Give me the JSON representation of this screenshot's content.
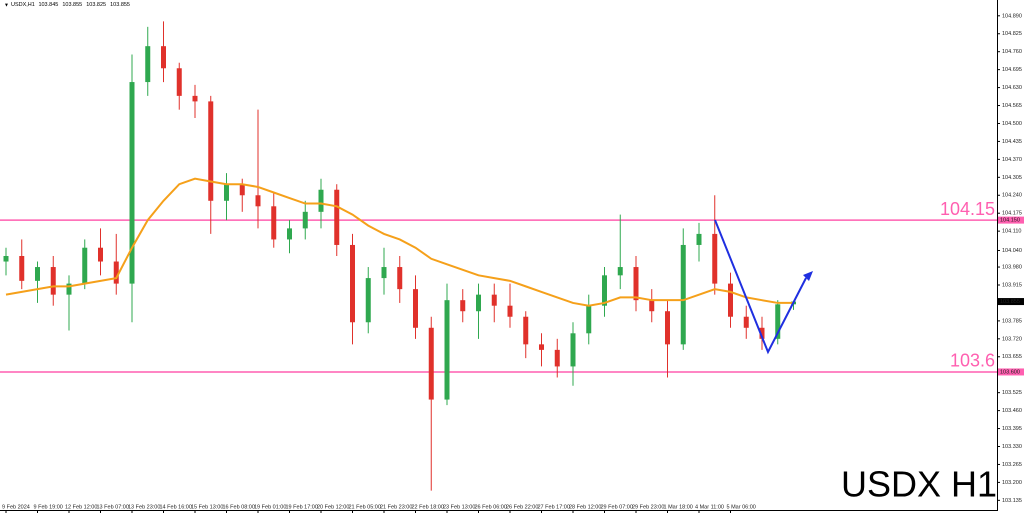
{
  "chart_data": {
    "type": "candlestick",
    "title": "USDX,H1",
    "watermark": "USDX H1",
    "up_color": "#2fa84f",
    "down_color": "#e0312b",
    "categories": [
      "9 Feb 2024",
      null,
      "9 Feb 19:00",
      null,
      "12 Feb 12:00",
      null,
      "13 Feb 07:00",
      null,
      "13 Feb 23:00",
      null,
      "14 Feb 16:00",
      null,
      "15 Feb 13:00",
      null,
      "16 Feb 08:00",
      null,
      "19 Feb 01:00",
      null,
      "19 Feb 17:00",
      null,
      "20 Feb 12:00",
      null,
      "21 Feb 05:00",
      null,
      "21 Feb 23:00",
      null,
      "22 Feb 18:00",
      null,
      "23 Feb 13:00",
      null,
      "26 Feb 06:00",
      null,
      "26 Feb 22:00",
      null,
      "27 Feb 17:00",
      null,
      "28 Feb 12:00",
      null,
      "29 Feb 07:00",
      null,
      "29 Feb 23:00",
      null,
      "1 Mar 18:00",
      null,
      "4 Mar 11:00",
      null,
      "5 Mar 06:00",
      null,
      null,
      null,
      null
    ],
    "open": [
      104.0,
      104.02,
      103.93,
      103.98,
      103.88,
      103.92,
      104.05,
      104.0,
      103.92,
      104.65,
      104.78,
      104.7,
      104.6,
      104.58,
      104.22,
      104.28,
      104.24,
      104.2,
      104.08,
      104.12,
      104.18,
      104.26,
      104.06,
      103.78,
      103.94,
      103.98,
      103.9,
      103.76,
      103.5,
      103.86,
      103.82,
      103.88,
      103.84,
      103.8,
      103.7,
      103.68,
      103.62,
      103.74,
      103.84,
      103.95,
      103.98,
      103.86,
      103.82,
      103.7,
      104.06,
      104.1,
      103.92,
      103.8,
      103.76,
      103.72,
      103.845
    ],
    "high": [
      104.05,
      104.08,
      104.0,
      104.02,
      103.95,
      104.08,
      104.12,
      104.1,
      104.75,
      104.85,
      104.87,
      104.72,
      104.64,
      104.6,
      104.32,
      104.3,
      104.55,
      104.25,
      104.15,
      104.22,
      104.3,
      104.28,
      104.1,
      103.98,
      104.05,
      104.02,
      103.95,
      103.8,
      103.92,
      103.9,
      103.92,
      103.92,
      103.92,
      103.82,
      103.74,
      103.72,
      103.78,
      103.88,
      103.98,
      104.17,
      104.02,
      103.9,
      103.86,
      104.12,
      104.14,
      104.24,
      103.96,
      103.84,
      103.8,
      103.86,
      103.855
    ],
    "low": [
      103.95,
      103.9,
      103.85,
      103.84,
      103.75,
      103.9,
      103.95,
      103.88,
      103.78,
      104.6,
      104.65,
      104.55,
      104.52,
      104.1,
      104.15,
      104.18,
      104.12,
      104.05,
      104.03,
      104.08,
      104.12,
      104.02,
      103.7,
      103.74,
      103.88,
      103.85,
      103.72,
      103.17,
      103.48,
      103.78,
      103.72,
      103.78,
      103.76,
      103.65,
      103.62,
      103.58,
      103.55,
      103.7,
      103.8,
      103.9,
      103.82,
      103.78,
      103.58,
      103.68,
      104.0,
      103.88,
      103.76,
      103.72,
      103.68,
      103.7,
      103.825
    ],
    "close": [
      104.02,
      103.93,
      103.98,
      103.88,
      103.92,
      104.05,
      104.0,
      103.92,
      104.65,
      104.78,
      104.7,
      104.6,
      104.58,
      104.22,
      104.28,
      104.24,
      104.2,
      104.08,
      104.12,
      104.18,
      104.26,
      104.06,
      103.78,
      103.94,
      103.98,
      103.9,
      103.76,
      103.5,
      103.86,
      103.82,
      103.88,
      103.84,
      103.8,
      103.7,
      103.68,
      103.62,
      103.74,
      103.84,
      103.95,
      103.98,
      103.86,
      103.82,
      103.7,
      104.06,
      104.1,
      103.92,
      103.8,
      103.76,
      103.72,
      103.845,
      103.855
    ],
    "overlays": [
      {
        "color": "#f5a01a",
        "values": [
          103.88,
          103.89,
          103.9,
          103.91,
          103.91,
          103.92,
          103.93,
          103.94,
          104.05,
          104.15,
          104.22,
          104.28,
          104.3,
          104.29,
          104.28,
          104.28,
          104.27,
          104.25,
          104.23,
          104.21,
          104.21,
          104.2,
          104.17,
          104.13,
          104.1,
          104.08,
          104.05,
          104.01,
          103.99,
          103.97,
          103.95,
          103.94,
          103.93,
          103.91,
          103.89,
          103.87,
          103.85,
          103.84,
          103.85,
          103.87,
          103.87,
          103.86,
          103.86,
          103.86,
          103.88,
          103.9,
          103.89,
          103.87,
          103.86,
          103.85,
          103.85
        ]
      }
    ],
    "levels": [
      {
        "value": 104.15,
        "label": "104.150"
      },
      {
        "value": 103.6,
        "label": "103.600"
      }
    ],
    "level_color": "#ff5fb0",
    "ylim": [
      103.1,
      104.94
    ],
    "yticks": [
      {
        "value": 104.89,
        "label": "104.890"
      },
      104.825,
      {
        "value": 104.76,
        "label": "104.760"
      },
      104.695,
      {
        "value": 104.63,
        "label": "104.630"
      },
      104.565,
      {
        "value": 104.5,
        "label": "104.500"
      },
      104.435,
      {
        "value": 104.37,
        "label": "104.370"
      },
      104.305,
      {
        "value": 104.24,
        "label": "104.240"
      },
      104.175,
      {
        "value": 104.11,
        "label": "104.110"
      },
      {
        "value": 104.04,
        "label": "104.040"
      },
      {
        "value": 103.98,
        "label": "103.980"
      },
      103.915,
      103.785,
      {
        "value": 103.72,
        "label": "103.720"
      },
      103.655,
      103.525,
      {
        "value": 103.46,
        "label": "103.460"
      },
      103.395,
      {
        "value": 103.33,
        "label": "103.330"
      },
      103.265,
      {
        "value": 103.2,
        "label": "103.200"
      },
      103.135
    ]
  }
}
